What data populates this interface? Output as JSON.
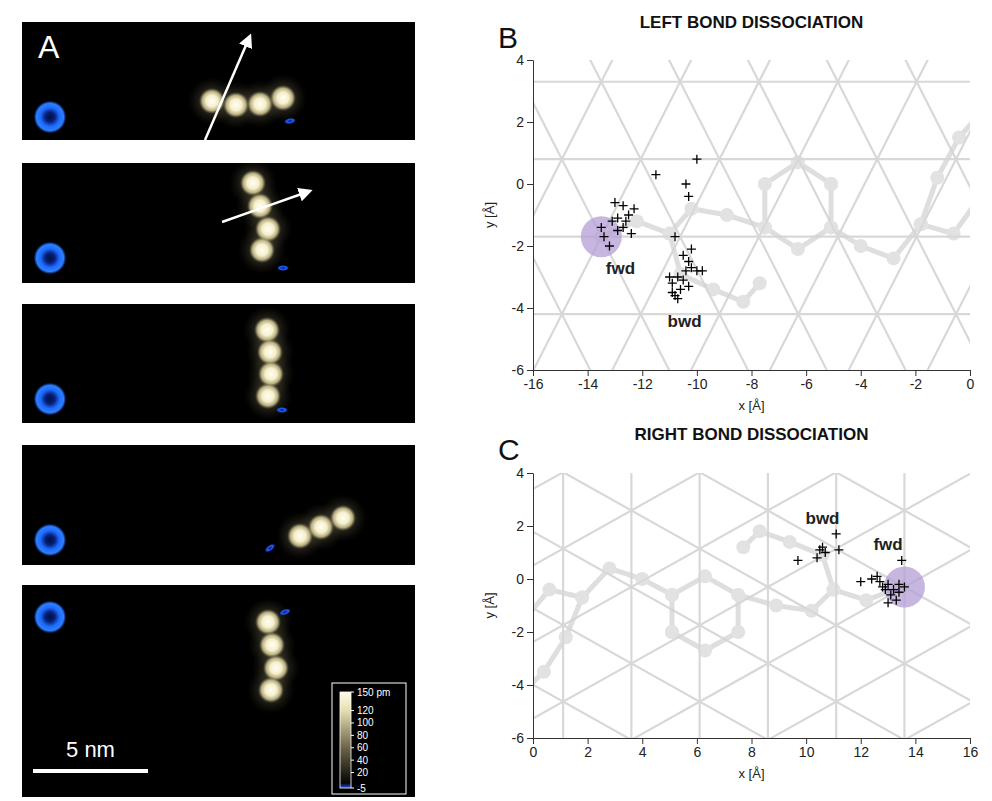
{
  "image_panel": {
    "label": "A",
    "colorbar": {
      "range": [
        -5,
        150
      ],
      "ticks": [
        {
          "value": 150,
          "label": "150 pm"
        },
        120,
        100,
        80,
        60,
        40,
        20,
        -5
      ]
    },
    "scale_bar": {
      "value": 5,
      "label": "5 nm"
    }
  },
  "chart_data": [
    {
      "type": "scatter",
      "label": "B",
      "title": "LEFT BOND DISSOCIATION",
      "x_label": "x [Å]",
      "y_label": "y [Å]",
      "xlim": [
        -16,
        0
      ],
      "ylim": [
        -6,
        4
      ],
      "xticks": [
        -16,
        -14,
        -12,
        -10,
        -8,
        -6,
        -4,
        -2,
        0
      ],
      "yticks": [
        -6,
        -4,
        -2,
        0,
        2,
        4
      ],
      "grid": false,
      "marker": "plus",
      "series": [
        {
          "name": "fwd",
          "color": "#000000",
          "x": [
            -13.0,
            -12.7,
            -12.5,
            -12.7,
            -13.1,
            -12.4,
            -13.4,
            -13.2,
            -12.9,
            -12.6,
            -13.5,
            -12.9,
            -12.3,
            -11.5
          ],
          "values": [
            -0.6,
            -0.7,
            -1.0,
            -1.4,
            -1.2,
            -1.6,
            -1.7,
            -2.0,
            -1.5,
            -1.2,
            -1.4,
            -1.1,
            -0.8,
            0.3
          ]
        },
        {
          "name": "bwd",
          "color": "#000000",
          "x": [
            -10.4,
            -10.3,
            -10.0,
            -10.8,
            -10.5,
            -10.2,
            -10.3,
            -10.0,
            -10.4,
            -10.7,
            -10.9,
            -10.6,
            -10.8,
            -10.5,
            -10.9,
            -10.7,
            -10.3,
            -11.0,
            -10.2,
            -9.8
          ],
          "values": [
            0.0,
            -0.4,
            0.8,
            -1.7,
            -2.3,
            -2.1,
            -2.5,
            -2.8,
            -2.8,
            -3.0,
            -3.2,
            -3.4,
            -3.6,
            -3.1,
            -3.5,
            -3.7,
            -3.3,
            -3.0,
            -2.7,
            -2.8
          ]
        }
      ],
      "site": {
        "x": -13.5,
        "y": -1.7,
        "color": "#b49fd6"
      }
    },
    {
      "type": "scatter",
      "label": "C",
      "title": "RIGHT BOND DISSOCIATION",
      "x_label": "x [Å]",
      "y_label": "y [Å]",
      "xlim": [
        0,
        16
      ],
      "ylim": [
        -6,
        4
      ],
      "xticks": [
        0,
        2,
        4,
        6,
        8,
        10,
        12,
        14,
        16
      ],
      "yticks": [
        -6,
        -4,
        -2,
        0,
        2,
        4
      ],
      "grid": false,
      "marker": "plus",
      "series": [
        {
          "name": "fwd",
          "color": "#000000",
          "x": [
            12.0,
            12.4,
            12.6,
            12.7,
            12.8,
            12.9,
            13.0,
            13.0,
            13.1,
            13.2,
            13.3,
            13.4,
            13.4,
            13.5,
            13.6
          ],
          "values": [
            -0.1,
            0.0,
            0.1,
            -0.1,
            -0.3,
            -0.4,
            -0.2,
            -0.9,
            -0.6,
            -0.4,
            -0.8,
            -0.2,
            -0.5,
            0.7,
            -0.3
          ]
        },
        {
          "name": "bwd",
          "color": "#000000",
          "x": [
            9.7,
            10.4,
            10.5,
            10.6,
            10.7,
            11.1,
            11.2
          ],
          "values": [
            0.7,
            0.8,
            1.1,
            1.2,
            1.0,
            1.7,
            1.1
          ]
        }
      ],
      "site": {
        "x": 13.6,
        "y": -0.3,
        "color": "#b49fd6"
      }
    }
  ]
}
